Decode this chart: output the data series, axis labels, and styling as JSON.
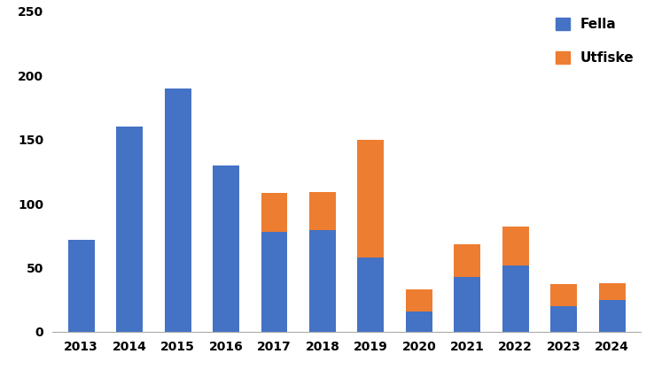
{
  "years": [
    2013,
    2014,
    2015,
    2016,
    2017,
    2018,
    2019,
    2020,
    2021,
    2022,
    2023,
    2024
  ],
  "fella": [
    72,
    160,
    190,
    130,
    78,
    79,
    58,
    16,
    43,
    52,
    20,
    25
  ],
  "utfiske": [
    0,
    0,
    0,
    0,
    30,
    30,
    92,
    17,
    25,
    30,
    17,
    13
  ],
  "fella_color": "#4472C4",
  "utfiske_color": "#ED7D31",
  "ylim": [
    0,
    250
  ],
  "yticks": [
    0,
    50,
    100,
    150,
    200,
    250
  ],
  "legend_fella": "Fella",
  "legend_utfiske": "Utfiske",
  "background_color": "#ffffff",
  "bar_width": 0.55
}
